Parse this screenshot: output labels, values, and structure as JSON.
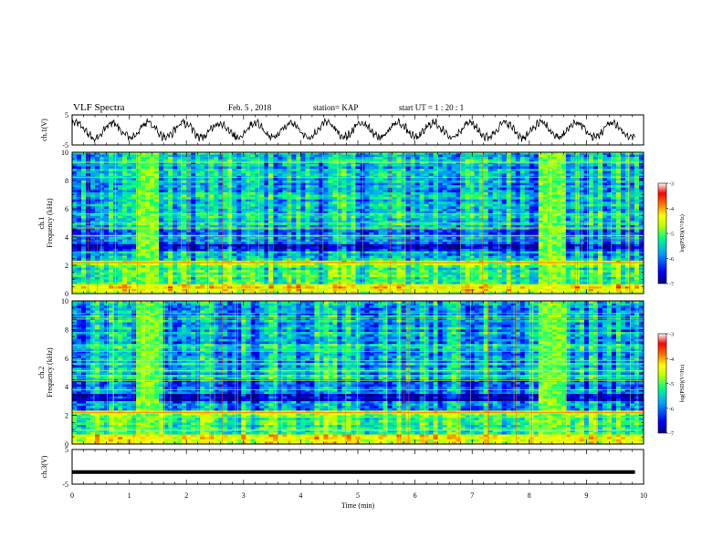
{
  "header": {
    "title": "VLF Spectra",
    "date": "Feb. 5 , 2018",
    "station": "station= KAP",
    "start": "start  UT =  1 : 20 : 1"
  },
  "chart_data": [
    {
      "type": "line",
      "ylabel": "ch.1(V)",
      "ylim": [
        -5,
        5
      ],
      "yticks": [
        "5",
        "-5"
      ],
      "description_series": "oscillating voltage waveform, about 16 cycles over 10 min, amplitude ~ ±3 V"
    },
    {
      "type": "heatmap",
      "ylabel_line1": "ch.1",
      "ylabel_line2": "Frequency (kHz)",
      "ylim": [
        0,
        10
      ],
      "yticks": [
        "0",
        "2",
        "4",
        "6",
        "8",
        "10"
      ],
      "colorbar": {
        "label": "log(PSD)(V²/Hz)",
        "ticks": [
          "-3",
          "-4",
          "-5",
          "-6",
          "-7"
        ],
        "range": [
          -7,
          -3
        ],
        "colors": [
          "#000080",
          "#0000ff",
          "#00a0ff",
          "#00ff80",
          "#c0ff00",
          "#ffff00",
          "#ff8000",
          "#ff0000",
          "#ffffff"
        ]
      },
      "bright_intervals_min": [
        [
          1.1,
          1.55
        ],
        [
          8.2,
          8.65
        ]
      ]
    },
    {
      "type": "heatmap",
      "ylabel_line1": "ch.2",
      "ylabel_line2": "Frequency (kHz)",
      "ylim": [
        0,
        10
      ],
      "yticks": [
        "0",
        "2",
        "4",
        "6",
        "8",
        "10"
      ],
      "colorbar": {
        "label": "log(PSD)(V²/Hz)",
        "ticks": [
          "-3",
          "-4",
          "-5",
          "-6",
          "-7"
        ],
        "range": [
          -7,
          -3
        ]
      },
      "bright_intervals_min": [
        [
          1.1,
          1.55
        ],
        [
          8.2,
          8.65
        ]
      ]
    },
    {
      "type": "line",
      "ylabel": "ch.3(V)",
      "ylim": [
        -5,
        5
      ],
      "yticks": [
        "5",
        "-5"
      ],
      "series": [
        {
          "values": [
            -1.5,
            -1.5
          ]
        }
      ]
    }
  ],
  "xaxis": {
    "label": "Time  (min)",
    "ticks": [
      "0",
      "1",
      "2",
      "3",
      "4",
      "5",
      "6",
      "7",
      "8",
      "9",
      "10"
    ],
    "xlim": [
      0,
      10
    ]
  }
}
